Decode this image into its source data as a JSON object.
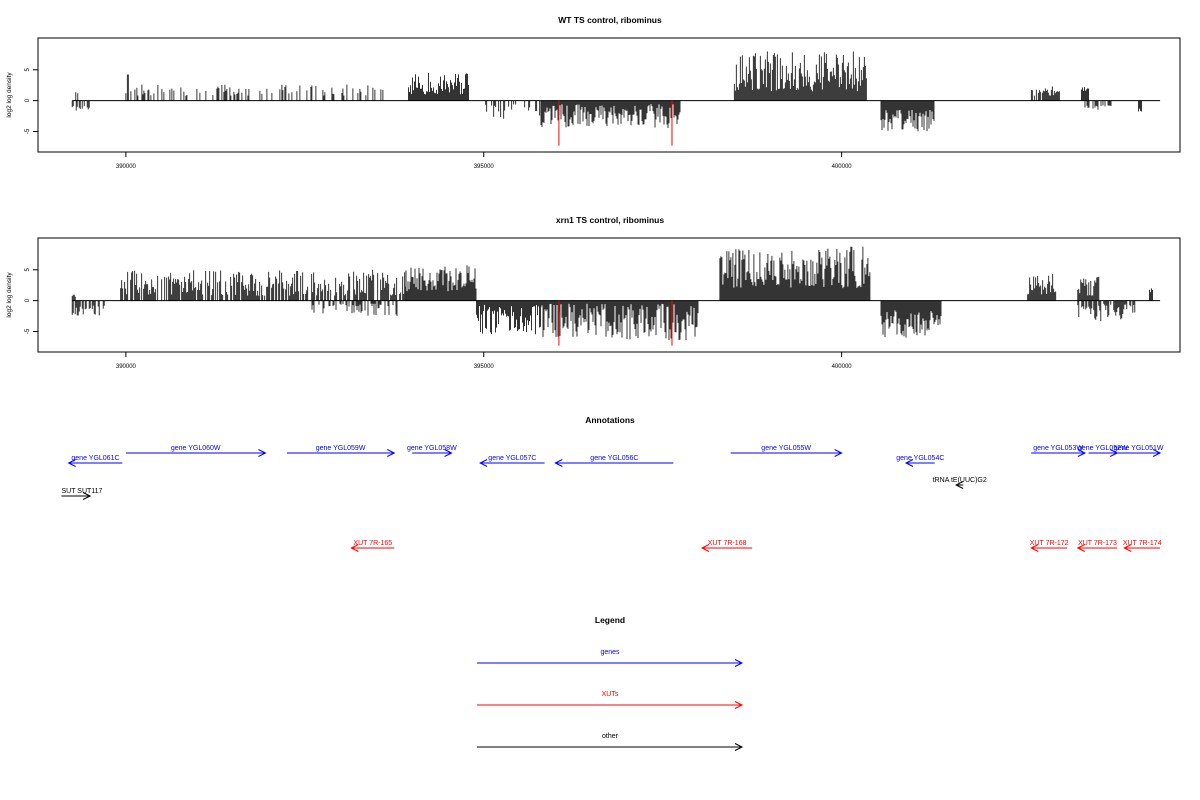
{
  "colors": {
    "gene": "#0000ff",
    "xut": "#ff0000",
    "other": "#000000",
    "bar": "#000000",
    "highlight": "#ff0000"
  },
  "chart_data": [
    {
      "type": "bar",
      "title": "WT TS control, ribominus",
      "ylabel": "log2 log density",
      "xlim": [
        388800,
        404700
      ],
      "ylim": [
        -8,
        9.5
      ],
      "yticks": [
        -5,
        0,
        5
      ],
      "xticks": [
        390000,
        395000,
        400000
      ],
      "grid": false,
      "red_markers": [
        {
          "x": 396050,
          "y": -7.3
        },
        {
          "x": 397630,
          "y": -7.3
        }
      ],
      "regions": [
        {
          "start": 389250,
          "end": 389550,
          "density": 0.55,
          "sign": -1,
          "min": 0.8,
          "max": 2.0
        },
        {
          "start": 389300,
          "end": 389350,
          "density": 0.3,
          "sign": 1,
          "min": 1.0,
          "max": 2.2
        },
        {
          "start": 390000,
          "end": 393600,
          "density": 0.32,
          "sign": 1,
          "min": 0.8,
          "max": 2.6
        },
        {
          "start": 390020,
          "end": 390040,
          "density": 1.0,
          "sign": 1,
          "min": 4.0,
          "max": 4.3
        },
        {
          "start": 393950,
          "end": 394800,
          "density": 1.0,
          "sign": 1,
          "min": 1.0,
          "max": 4.5
        },
        {
          "start": 395000,
          "end": 395800,
          "density": 0.55,
          "sign": -1,
          "min": 0.5,
          "max": 3.0
        },
        {
          "start": 395800,
          "end": 397750,
          "density": 1.0,
          "sign": -1,
          "min": 0.5,
          "max": 4.5
        },
        {
          "start": 398500,
          "end": 400350,
          "density": 1.0,
          "sign": 1,
          "min": 1.5,
          "max": 8.0
        },
        {
          "start": 400550,
          "end": 401300,
          "density": 1.0,
          "sign": -1,
          "min": 1.5,
          "max": 5.0
        },
        {
          "start": 402650,
          "end": 403050,
          "density": 0.8,
          "sign": 1,
          "min": 0.8,
          "max": 2.3
        },
        {
          "start": 403350,
          "end": 403450,
          "density": 1.0,
          "sign": 1,
          "min": 1.0,
          "max": 2.2
        },
        {
          "start": 403400,
          "end": 403800,
          "density": 0.6,
          "sign": -1,
          "min": 0.5,
          "max": 1.5
        },
        {
          "start": 404150,
          "end": 404200,
          "density": 1.0,
          "sign": -1,
          "min": 1.0,
          "max": 2.0
        }
      ]
    },
    {
      "type": "bar",
      "title": "xrn1 TS control, ribominus",
      "ylabel": "log2 log density",
      "xlim": [
        388800,
        404700
      ],
      "ylim": [
        -8,
        9.5
      ],
      "yticks": [
        -5,
        0,
        5
      ],
      "xticks": [
        390000,
        395000,
        400000
      ],
      "grid": false,
      "red_markers": [
        {
          "x": 396050,
          "y": -7.3
        },
        {
          "x": 397630,
          "y": -7.3
        }
      ],
      "regions": [
        {
          "start": 389250,
          "end": 389700,
          "density": 0.7,
          "sign": -1,
          "min": 0.8,
          "max": 2.5
        },
        {
          "start": 389250,
          "end": 389300,
          "density": 1.0,
          "sign": 1,
          "min": 0.6,
          "max": 1.0
        },
        {
          "start": 389900,
          "end": 393900,
          "density": 0.75,
          "sign": 1,
          "min": 0.8,
          "max": 5.0
        },
        {
          "start": 392600,
          "end": 393800,
          "density": 0.5,
          "sign": -1,
          "min": 0.5,
          "max": 2.5
        },
        {
          "start": 393900,
          "end": 394900,
          "density": 1.0,
          "sign": 1,
          "min": 1.5,
          "max": 5.8
        },
        {
          "start": 394900,
          "end": 395800,
          "density": 1.0,
          "sign": -1,
          "min": 0.5,
          "max": 5.5
        },
        {
          "start": 395800,
          "end": 398000,
          "density": 1.0,
          "sign": -1,
          "min": 0.5,
          "max": 6.5
        },
        {
          "start": 398300,
          "end": 400400,
          "density": 1.0,
          "sign": 1,
          "min": 2.0,
          "max": 8.8
        },
        {
          "start": 400550,
          "end": 401400,
          "density": 1.0,
          "sign": -1,
          "min": 1.5,
          "max": 6.0
        },
        {
          "start": 402600,
          "end": 403000,
          "density": 1.0,
          "sign": 1,
          "min": 1.0,
          "max": 4.5
        },
        {
          "start": 403300,
          "end": 403600,
          "density": 1.0,
          "sign": 1,
          "min": 0.8,
          "max": 4.0
        },
        {
          "start": 403300,
          "end": 404100,
          "density": 0.7,
          "sign": -1,
          "min": 0.5,
          "max": 3.5
        },
        {
          "start": 404300,
          "end": 404350,
          "density": 1.0,
          "sign": 1,
          "min": 1.0,
          "max": 2.0
        }
      ]
    }
  ],
  "annotations": {
    "title": "Annotations",
    "features": [
      {
        "label": "gene YGL061C",
        "start": 389200,
        "end": 389950,
        "strand": "-",
        "type": "gene",
        "row": 1
      },
      {
        "label": "gene YGL060W",
        "start": 390000,
        "end": 391950,
        "strand": "+",
        "type": "gene",
        "row": 0
      },
      {
        "label": "gene YGL059W",
        "start": 392250,
        "end": 393750,
        "strand": "+",
        "type": "gene",
        "row": 0
      },
      {
        "label": "gene YGL058W",
        "start": 394000,
        "end": 394550,
        "strand": "+",
        "type": "gene",
        "row": 0
      },
      {
        "label": "gene YGL057C",
        "start": 394950,
        "end": 395850,
        "strand": "-",
        "type": "gene",
        "row": 1
      },
      {
        "label": "gene YGL056C",
        "start": 396000,
        "end": 397650,
        "strand": "-",
        "type": "gene",
        "row": 1
      },
      {
        "label": "gene YGL055W",
        "start": 398450,
        "end": 400000,
        "strand": "+",
        "type": "gene",
        "row": 0
      },
      {
        "label": "gene YGL054C",
        "start": 400900,
        "end": 401300,
        "strand": "-",
        "type": "gene",
        "row": 1
      },
      {
        "label": "gene YGL053W",
        "start": 402650,
        "end": 403400,
        "strand": "+",
        "type": "gene",
        "row": 0
      },
      {
        "label": "gene YGL052W",
        "start": 403450,
        "end": 403850,
        "strand": "+",
        "type": "gene",
        "row": 0
      },
      {
        "label": "gene YGL051W",
        "start": 403850,
        "end": 404450,
        "strand": "+",
        "type": "gene",
        "row": 0
      },
      {
        "label": "tRNA tE(UUC)G2",
        "start": 401600,
        "end": 401700,
        "strand": "-",
        "type": "other",
        "row": 2
      },
      {
        "label": "SUT SUT117",
        "start": 389100,
        "end": 389500,
        "strand": "+",
        "type": "other",
        "row": 3
      },
      {
        "label": "XUT 7R-165",
        "start": 393150,
        "end": 393750,
        "strand": "-",
        "type": "xut",
        "row": 4
      },
      {
        "label": "XUT 7R-168",
        "start": 398050,
        "end": 398750,
        "strand": "-",
        "type": "xut",
        "row": 4
      },
      {
        "label": "XUT 7R-172",
        "start": 402650,
        "end": 403150,
        "strand": "-",
        "type": "xut",
        "row": 4
      },
      {
        "label": "XUT 7R-173",
        "start": 403300,
        "end": 403850,
        "strand": "-",
        "type": "xut",
        "row": 4
      },
      {
        "label": "XUT 7R-174",
        "start": 403950,
        "end": 404450,
        "strand": "-",
        "type": "xut",
        "row": 4
      }
    ]
  },
  "legend": {
    "title": "Legend",
    "items": [
      {
        "label": "genes",
        "type": "gene"
      },
      {
        "label": "XUTs",
        "type": "xut"
      },
      {
        "label": "other",
        "type": "other"
      }
    ]
  }
}
